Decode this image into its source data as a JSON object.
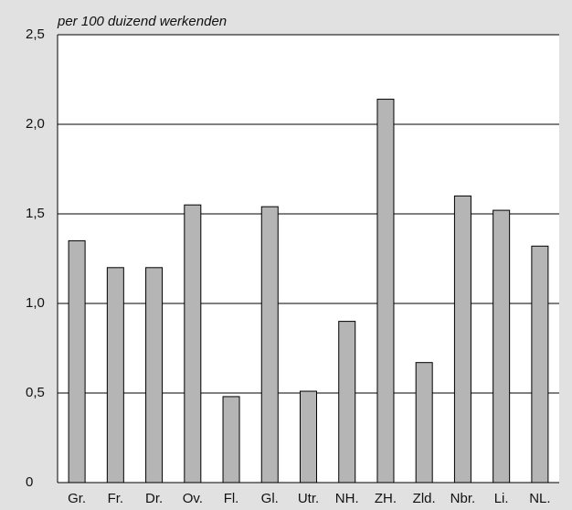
{
  "chart_data": {
    "type": "bar",
    "y_axis_label": "per 100 duizend werkenden",
    "categories": [
      "Gr.",
      "Fr.",
      "Dr.",
      "Ov.",
      "Fl.",
      "Gl.",
      "Utr.",
      "NH.",
      "ZH.",
      "Zld.",
      "Nbr.",
      "Li.",
      "NL."
    ],
    "values": [
      1.35,
      1.2,
      1.2,
      1.55,
      0.48,
      1.54,
      0.51,
      0.9,
      2.14,
      0.67,
      1.6,
      1.52,
      1.32
    ],
    "color": "#b5b5b5",
    "ylim": [
      0,
      2.5
    ],
    "yticks": [
      0,
      {
        "value": 0.5,
        "label": "0,5"
      },
      {
        "value": 1.0,
        "label": "1,0"
      },
      {
        "value": 1.5,
        "label": "1,5"
      },
      {
        "value": 2.0,
        "label": "2,0"
      },
      {
        "value": 2.5,
        "label": "2,5"
      }
    ],
    "grid": true
  }
}
